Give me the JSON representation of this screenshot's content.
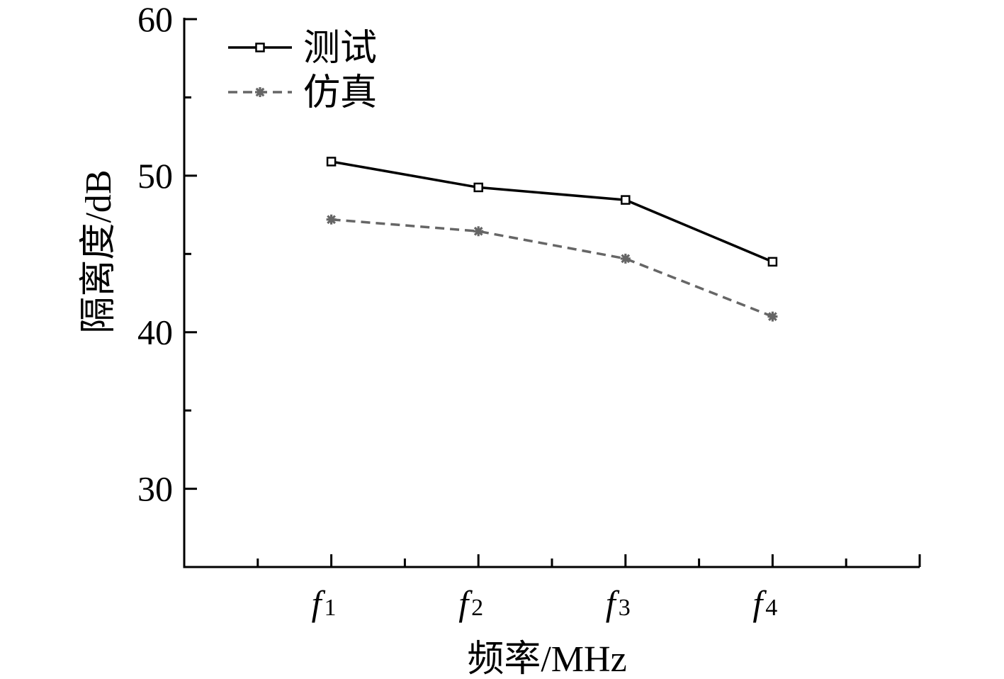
{
  "chart_data": {
    "type": "line",
    "categories": [
      "f1",
      "f2",
      "f3",
      "f4"
    ],
    "category_labels": [
      {
        "main": "f",
        "sub": "1"
      },
      {
        "main": "f",
        "sub": "2"
      },
      {
        "main": "f",
        "sub": "3"
      },
      {
        "main": "f",
        "sub": "4"
      }
    ],
    "series": [
      {
        "name": "测试",
        "values": [
          50.9,
          49.25,
          48.45,
          44.5
        ],
        "color": "#000000",
        "line": "solid",
        "marker": "square"
      },
      {
        "name": "仿真",
        "values": [
          47.2,
          46.45,
          44.7,
          41.0
        ],
        "color": "#666666",
        "line": "dashed",
        "marker": "asterisk"
      }
    ],
    "xlabel": "频率/MHz",
    "ylabel": "隔离度/dB",
    "ylim": [
      25,
      60
    ],
    "y_ticks": [
      30,
      40,
      50,
      60
    ],
    "y_tick_labels": [
      "30",
      "40",
      "50",
      "60"
    ],
    "y_minor_ticks": [
      35,
      45,
      55
    ],
    "grid": false,
    "legend_position": "top-left"
  }
}
